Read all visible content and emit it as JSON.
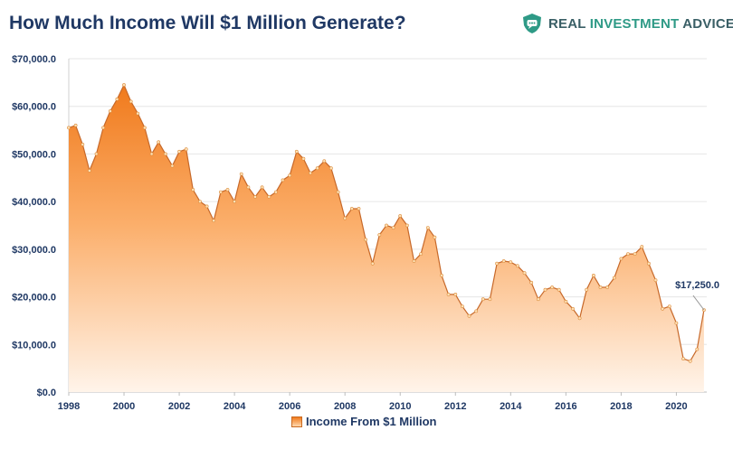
{
  "header": {
    "title": "How Much Income Will $1 Million Generate?",
    "brand": {
      "part1": "REAL ",
      "part2": "INVESTMENT",
      "part3": " ADVICE",
      "icon": "shield-chat-icon"
    }
  },
  "colors": {
    "title": "#1f3864",
    "area_top": "#f07a1c",
    "area_bottom": "#fff4ea",
    "grid": "#e6e6e6",
    "brand_teal": "#2e9a86"
  },
  "chart_data": {
    "type": "area",
    "title": "How Much Income Will $1 Million Generate?",
    "xlabel": "",
    "ylabel": "",
    "ylim": [
      0,
      70000
    ],
    "xlim": [
      1998,
      2021.1
    ],
    "grid": true,
    "legend_position": "bottom",
    "y_ticks": [
      "$0.0",
      "$10,000.0",
      "$20,000.0",
      "$30,000.0",
      "$40,000.0",
      "$50,000.0",
      "$60,000.0",
      "$70,000.0"
    ],
    "x_ticks": [
      "1998",
      "2000",
      "2002",
      "2004",
      "2006",
      "2008",
      "2010",
      "2012",
      "2014",
      "2016",
      "2018",
      "2020"
    ],
    "annotation": {
      "text": "$17,250.0",
      "x": 2021.0,
      "y": 17250
    },
    "series": [
      {
        "name": "Income From $1 Million",
        "x": [
          1998.0,
          1998.25,
          1998.5,
          1998.75,
          1999.0,
          1999.25,
          1999.5,
          1999.75,
          2000.0,
          2000.25,
          2000.5,
          2000.75,
          2001.0,
          2001.25,
          2001.5,
          2001.75,
          2002.0,
          2002.25,
          2002.5,
          2002.75,
          2003.0,
          2003.25,
          2003.5,
          2003.75,
          2004.0,
          2004.25,
          2004.5,
          2004.75,
          2005.0,
          2005.25,
          2005.5,
          2005.75,
          2006.0,
          2006.25,
          2006.5,
          2006.75,
          2007.0,
          2007.25,
          2007.5,
          2007.75,
          2008.0,
          2008.25,
          2008.5,
          2008.75,
          2009.0,
          2009.25,
          2009.5,
          2009.75,
          2010.0,
          2010.25,
          2010.5,
          2010.75,
          2011.0,
          2011.25,
          2011.5,
          2011.75,
          2012.0,
          2012.25,
          2012.5,
          2012.75,
          2013.0,
          2013.25,
          2013.5,
          2013.75,
          2014.0,
          2014.25,
          2014.5,
          2014.75,
          2015.0,
          2015.25,
          2015.5,
          2015.75,
          2016.0,
          2016.25,
          2016.5,
          2016.75,
          2017.0,
          2017.25,
          2017.5,
          2017.75,
          2018.0,
          2018.25,
          2018.5,
          2018.75,
          2019.0,
          2019.25,
          2019.5,
          2019.75,
          2020.0,
          2020.25,
          2020.5,
          2020.75,
          2021.0
        ],
        "values": [
          55500,
          56000,
          52000,
          46500,
          50000,
          55500,
          59000,
          61500,
          64500,
          61000,
          58500,
          55500,
          50000,
          52500,
          50000,
          47500,
          50500,
          51000,
          42500,
          40000,
          39000,
          36000,
          42000,
          42500,
          40000,
          45800,
          43000,
          41000,
          43000,
          41000,
          42000,
          44500,
          45500,
          50500,
          49000,
          46000,
          47000,
          48500,
          47000,
          42000,
          36500,
          38500,
          38500,
          32000,
          27000,
          33000,
          35000,
          34500,
          37000,
          35000,
          27500,
          29000,
          34500,
          32500,
          24500,
          20500,
          20500,
          18000,
          16000,
          17000,
          19500,
          19500,
          27000,
          27500,
          27300,
          26500,
          25000,
          23000,
          19500,
          21500,
          22000,
          21500,
          19000,
          17500,
          15500,
          21500,
          24500,
          22000,
          22000,
          24000,
          28000,
          29000,
          29000,
          30500,
          27000,
          23500,
          17500,
          18000,
          14500,
          7000,
          6500,
          9000,
          17250
        ]
      }
    ]
  }
}
